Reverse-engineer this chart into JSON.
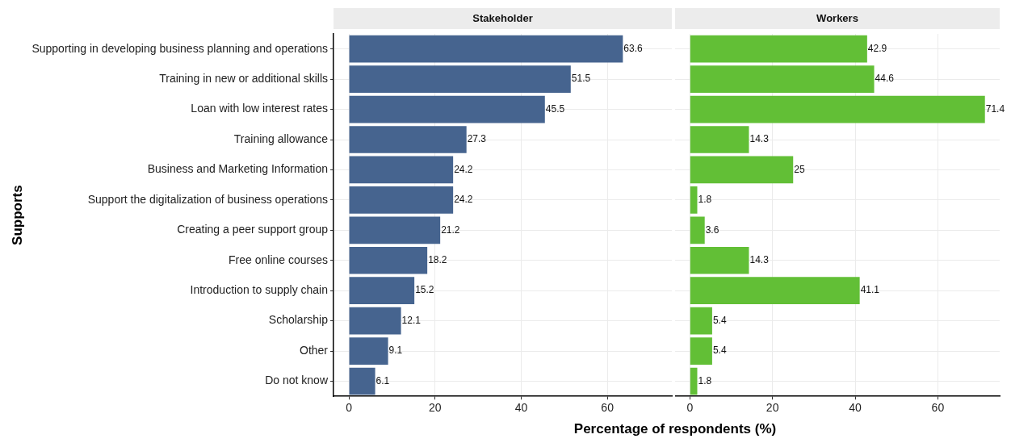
{
  "chart_data": [
    {
      "type": "bar",
      "orientation": "horizontal",
      "title": "Stakeholder",
      "ylabel": "Supports",
      "xlabel": "Percentage of respondents (%)",
      "categories": [
        "Supporting in developing business planning and operations",
        "Training in new or additional skills",
        "Loan with low interest rates",
        "Training allowance",
        "Business and Marketing Information",
        "Support the digitalization of business operations",
        "Creating a peer support group",
        "Free online courses",
        "Introduction to supply chain",
        "Scholarship",
        "Other",
        "Do not know"
      ],
      "series": [
        {
          "color": "#46648f",
          "values": [
            63.6,
            51.5,
            45.5,
            27.3,
            24.2,
            24.2,
            21.2,
            18.2,
            15.2,
            12.1,
            9.1,
            6.1
          ]
        }
      ],
      "xlim": [
        -3.57,
        74.97
      ],
      "xticks": [
        0,
        20,
        40,
        60
      ],
      "grid": true,
      "data_labels": true
    },
    {
      "type": "bar",
      "orientation": "horizontal",
      "title": "Workers",
      "categories": [
        null,
        null,
        null,
        null,
        null,
        null,
        null,
        null,
        null,
        null,
        null,
        null
      ],
      "series": [
        {
          "color": "#62bf36",
          "values": [
            42.9,
            44.6,
            71.4,
            14.3,
            25,
            1.8,
            3.6,
            14.3,
            41.1,
            5.4,
            5.4,
            1.8
          ]
        }
      ],
      "xlim": [
        -3.57,
        74.97
      ],
      "xticks": [
        0,
        20,
        40,
        60
      ],
      "grid": true,
      "data_labels": true,
      "tick_labels": "x"
    }
  ]
}
